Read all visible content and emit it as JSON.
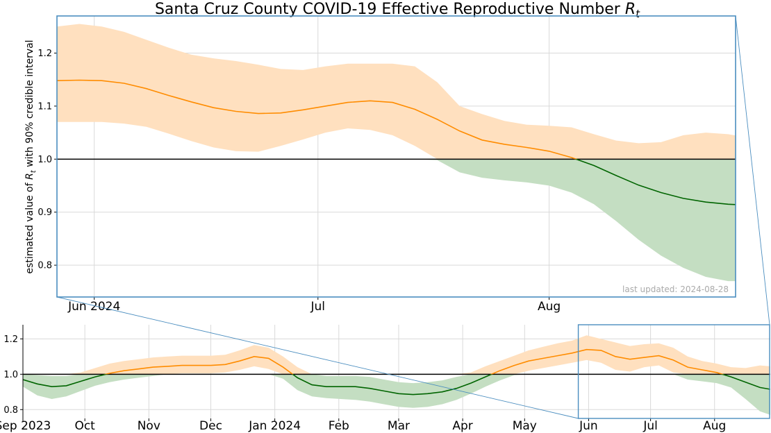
{
  "chart_data": [
    {
      "type": "line",
      "title": "Santa Cruz County COVID-19 Effective Reproductive Number Rt",
      "title_main": "Santa Cruz County COVID-19 Effective Reproductive Number ",
      "title_var": "R",
      "title_sub": "t",
      "ylabel_pre": "estimated value of ",
      "ylabel_var": "R",
      "ylabel_sub": "t",
      "ylabel_post": " with 90% credible interval",
      "annotation": "last updated: 2024-08-28",
      "x_tick_labels": [
        "Jun 2024",
        "Jul",
        "Aug"
      ],
      "x_tick_days": [
        2,
        32,
        63
      ],
      "y_tick_labels": [
        "0.8",
        "0.9",
        "1.0",
        "1.1",
        "1.2"
      ],
      "y_ticks": [
        0.8,
        0.9,
        1.0,
        1.1,
        1.2
      ],
      "xlim_days": [
        -3,
        88
      ],
      "ylim": [
        0.74,
        1.27
      ],
      "reference_line": 1.0,
      "grid": true,
      "colors": {
        "above": "#ff8c00",
        "above_fill": "#ffe0bf",
        "below": "#006400",
        "below_fill": "#c4dec2",
        "ref": "#000000",
        "frame": "#4a8dbf"
      },
      "dates": [
        "2024-05-27",
        "2024-05-30",
        "2024-06-02",
        "2024-06-05",
        "2024-06-08",
        "2024-06-11",
        "2024-06-14",
        "2024-06-17",
        "2024-06-20",
        "2024-06-23",
        "2024-06-26",
        "2024-06-29",
        "2024-07-02",
        "2024-07-05",
        "2024-07-08",
        "2024-07-11",
        "2024-07-14",
        "2024-07-17",
        "2024-07-20",
        "2024-07-23",
        "2024-07-26",
        "2024-07-29",
        "2024-08-01",
        "2024-08-04",
        "2024-08-07",
        "2024-08-10",
        "2024-08-13",
        "2024-08-16",
        "2024-08-19",
        "2024-08-22",
        "2024-08-25",
        "2024-08-28"
      ],
      "series": [
        {
          "values": [
            1.148,
            1.149,
            1.148,
            1.143,
            1.133,
            1.12,
            1.108,
            1.097,
            1.09,
            1.086,
            1.087,
            1.093,
            1.1,
            1.107,
            1.11,
            1.107,
            1.094,
            1.075,
            1.053,
            1.036,
            1.028,
            1.022,
            1.015,
            1.003,
            0.988,
            0.969,
            0.951,
            0.937,
            0.926,
            0.919,
            0.915,
            0.913
          ],
          "lower": [
            1.07,
            1.07,
            1.07,
            1.067,
            1.061,
            1.048,
            1.034,
            1.022,
            1.015,
            1.014,
            1.025,
            1.037,
            1.05,
            1.058,
            1.055,
            1.045,
            1.025,
            0.998,
            0.975,
            0.965,
            0.96,
            0.956,
            0.95,
            0.937,
            0.915,
            0.883,
            0.848,
            0.818,
            0.795,
            0.778,
            0.77,
            0.77
          ],
          "upper": [
            1.25,
            1.255,
            1.25,
            1.24,
            1.225,
            1.21,
            1.197,
            1.19,
            1.185,
            1.178,
            1.17,
            1.168,
            1.175,
            1.18,
            1.18,
            1.18,
            1.175,
            1.145,
            1.1,
            1.085,
            1.072,
            1.065,
            1.063,
            1.06,
            1.047,
            1.035,
            1.03,
            1.032,
            1.045,
            1.05,
            1.047,
            1.04
          ]
        }
      ]
    },
    {
      "type": "line",
      "x_tick_labels": [
        "Sep 2023",
        "Oct",
        "Nov",
        "Dec",
        "Jan 2024",
        "Feb",
        "Mar",
        "Apr",
        "May",
        "Jun",
        "Jul",
        "Aug"
      ],
      "x_tick_days": [
        0,
        30,
        61,
        91,
        122,
        153,
        182,
        213,
        243,
        274,
        304,
        335
      ],
      "y_tick_labels": [
        "0.8",
        "1.0",
        "1.2"
      ],
      "y_ticks": [
        0.8,
        1.0,
        1.2
      ],
      "xlim_days": [
        0,
        362
      ],
      "ylim": [
        0.75,
        1.28
      ],
      "reference_line": 1.0,
      "grid": true,
      "zoom_window_days": [
        269,
        362
      ],
      "dates": [
        "2023-09-01",
        "2023-09-08",
        "2023-09-15",
        "2023-09-22",
        "2023-09-29",
        "2023-10-06",
        "2023-10-13",
        "2023-10-20",
        "2023-10-27",
        "2023-11-03",
        "2023-11-10",
        "2023-11-17",
        "2023-11-24",
        "2023-12-01",
        "2023-12-08",
        "2023-12-15",
        "2023-12-22",
        "2023-12-29",
        "2024-01-05",
        "2024-01-12",
        "2024-01-19",
        "2024-01-26",
        "2024-02-02",
        "2024-02-09",
        "2024-02-16",
        "2024-02-23",
        "2024-03-01",
        "2024-03-08",
        "2024-03-15",
        "2024-03-22",
        "2024-03-29",
        "2024-04-05",
        "2024-04-12",
        "2024-04-19",
        "2024-04-26",
        "2024-05-03",
        "2024-05-10",
        "2024-05-17",
        "2024-05-24",
        "2024-05-31",
        "2024-06-07",
        "2024-06-14",
        "2024-06-21",
        "2024-06-28",
        "2024-07-05",
        "2024-07-12",
        "2024-07-19",
        "2024-07-26",
        "2024-08-02",
        "2024-08-09",
        "2024-08-16",
        "2024-08-23",
        "2024-08-28"
      ],
      "series": [
        {
          "values": [
            0.97,
            0.945,
            0.93,
            0.935,
            0.96,
            0.985,
            1.005,
            1.02,
            1.03,
            1.04,
            1.045,
            1.05,
            1.05,
            1.05,
            1.055,
            1.075,
            1.1,
            1.09,
            1.04,
            0.98,
            0.94,
            0.93,
            0.93,
            0.93,
            0.92,
            0.905,
            0.89,
            0.885,
            0.89,
            0.9,
            0.92,
            0.95,
            0.985,
            1.02,
            1.05,
            1.075,
            1.09,
            1.105,
            1.12,
            1.14,
            1.135,
            1.1,
            1.085,
            1.095,
            1.105,
            1.08,
            1.04,
            1.025,
            1.01,
            0.985,
            0.955,
            0.925,
            0.915
          ],
          "lower": [
            0.93,
            0.88,
            0.86,
            0.875,
            0.905,
            0.935,
            0.955,
            0.97,
            0.98,
            0.99,
            1.0,
            1.005,
            1.005,
            1.005,
            1.01,
            1.025,
            1.045,
            1.03,
            0.975,
            0.91,
            0.875,
            0.865,
            0.86,
            0.855,
            0.845,
            0.83,
            0.815,
            0.81,
            0.815,
            0.83,
            0.855,
            0.89,
            0.93,
            0.965,
            0.995,
            1.02,
            1.035,
            1.05,
            1.065,
            1.08,
            1.065,
            1.025,
            1.015,
            1.04,
            1.05,
            1.01,
            0.97,
            0.96,
            0.95,
            0.925,
            0.86,
            0.79,
            0.77
          ],
          "upper": [
            1.0,
            0.995,
            0.99,
            0.99,
            1.01,
            1.035,
            1.06,
            1.075,
            1.085,
            1.095,
            1.1,
            1.105,
            1.105,
            1.105,
            1.11,
            1.135,
            1.165,
            1.15,
            1.1,
            1.04,
            1.0,
            0.99,
            0.99,
            0.99,
            0.985,
            0.97,
            0.955,
            0.95,
            0.955,
            0.965,
            0.985,
            1.01,
            1.045,
            1.075,
            1.105,
            1.135,
            1.155,
            1.175,
            1.19,
            1.22,
            1.2,
            1.18,
            1.16,
            1.17,
            1.175,
            1.15,
            1.1,
            1.075,
            1.06,
            1.04,
            1.035,
            1.05,
            1.045
          ]
        }
      ]
    }
  ]
}
